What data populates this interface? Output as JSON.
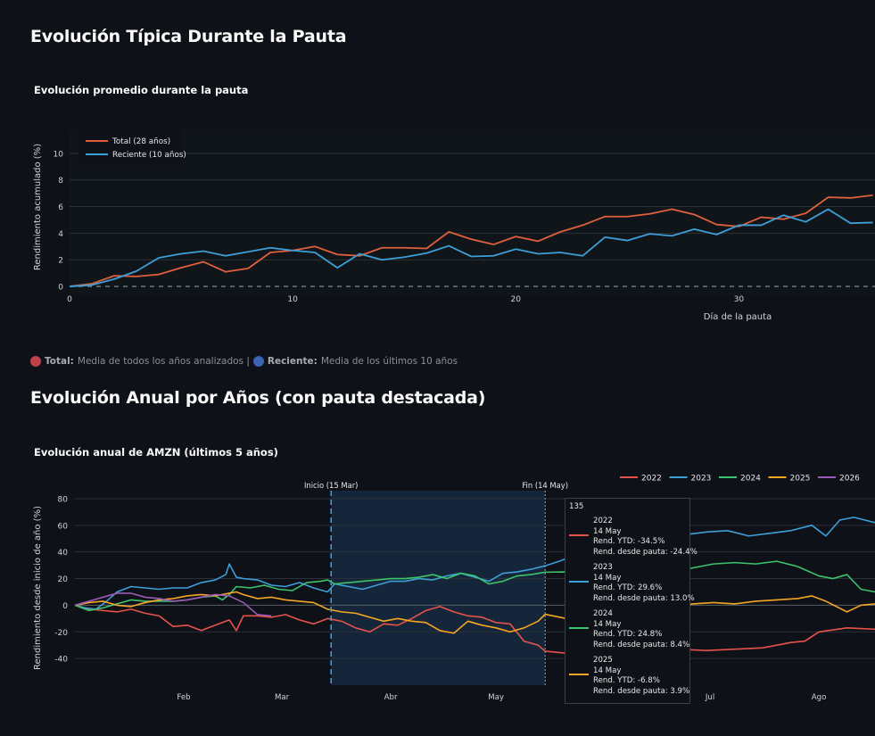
{
  "page": {
    "section1_title": "Evolución Típica Durante la Pauta",
    "section2_title": "Evolución Anual por Años (con pauta destacada)",
    "caption": {
      "total_label": "Total:",
      "total_text": "Media de todos los años analizados |",
      "recent_label": "Reciente:",
      "recent_text": "Media de los últimos 10 años",
      "total_dot_color": "#c0404a",
      "recent_dot_color": "#3d63b5"
    }
  },
  "chart_data": [
    {
      "type": "line",
      "title": "Evolución promedio durante la pauta",
      "xlabel": "Día de la pauta",
      "ylabel": "Rendimiento acumulado (%)",
      "xlim": [
        0,
        36.1
      ],
      "ylim": [
        -0.6,
        11.8
      ],
      "xticks": [
        0,
        10,
        20,
        30
      ],
      "yticks": [
        0,
        2,
        4,
        6,
        8,
        10
      ],
      "grid": true,
      "legend_position": "top-left",
      "zero_line": "dashed",
      "series": [
        {
          "name": "Total (28 años)",
          "color": "#e0603e",
          "x": [
            0,
            1,
            2,
            3,
            4,
            5,
            6,
            7,
            8,
            9,
            10,
            11,
            12,
            13,
            14,
            15,
            16,
            17,
            18,
            19,
            20,
            21,
            22,
            23,
            24,
            25,
            26,
            27,
            28,
            29,
            30,
            31,
            32,
            33,
            34,
            35,
            36
          ],
          "y": [
            0,
            0.2,
            0.8,
            0.75,
            0.9,
            1.4,
            1.85,
            1.1,
            1.35,
            2.55,
            2.7,
            3.0,
            2.4,
            2.3,
            2.9,
            2.9,
            2.85,
            4.1,
            3.55,
            3.15,
            3.75,
            3.4,
            4.1,
            4.6,
            5.25,
            5.25,
            5.45,
            5.8,
            5.4,
            4.65,
            4.5,
            5.2,
            5.05,
            5.5,
            6.7,
            6.65,
            6.85
          ]
        },
        {
          "name": "Reciente (10 años)",
          "color": "#3d9fd8",
          "x": [
            0,
            1,
            2,
            3,
            4,
            5,
            6,
            7,
            8,
            9,
            10,
            11,
            12,
            13,
            14,
            15,
            16,
            17,
            18,
            19,
            20,
            21,
            22,
            23,
            24,
            25,
            26,
            27,
            28,
            29,
            30,
            31,
            32,
            33,
            34,
            35,
            36
          ],
          "y": [
            0,
            0.1,
            0.55,
            1.15,
            2.15,
            2.45,
            2.65,
            2.3,
            2.6,
            2.9,
            2.7,
            2.55,
            1.4,
            2.45,
            2.0,
            2.2,
            2.5,
            3.05,
            2.25,
            2.3,
            2.8,
            2.45,
            2.55,
            2.3,
            3.7,
            3.45,
            3.95,
            3.8,
            4.3,
            3.9,
            4.6,
            4.6,
            5.35,
            4.85,
            5.8,
            4.75,
            4.8
          ]
        }
      ]
    },
    {
      "type": "line",
      "title": "Evolución anual de AMZN (últimos 5 años)",
      "xlabel": "",
      "ylabel": "Rendimiento desde inicio de año (%)",
      "x_unit": "day_of_year",
      "xlim": [
        0,
        228
      ],
      "ylim": [
        -60,
        86
      ],
      "xticks": [
        {
          "doy": 31,
          "label": "Feb"
        },
        {
          "doy": 59,
          "label": "Mar"
        },
        {
          "doy": 90,
          "label": "Abr"
        },
        {
          "doy": 120,
          "label": "May"
        },
        {
          "doy": 181,
          "label": "Jul"
        },
        {
          "doy": 212,
          "label": "Ago"
        }
      ],
      "yticks": [
        -40,
        -20,
        0,
        20,
        40,
        60,
        80
      ],
      "grid": true,
      "legend_position": "top-right",
      "highlight_period": {
        "start_doy": 73,
        "end_doy": 134,
        "start_label": "Inicio (15 Mar)",
        "end_label": "Fin (14 May)",
        "fill": "#16263a"
      },
      "hover": {
        "header": "135",
        "items": [
          {
            "year": "2022",
            "date": "14 May",
            "ytd": "Rend. YTD: -34.5%",
            "since": "Rend. desde pauta: -24.4%",
            "color": "#e5534b"
          },
          {
            "year": "2023",
            "date": "14 May",
            "ytd": "Rend. YTD: 29.6%",
            "since": "Rend. desde pauta: 13.0%",
            "color": "#3d9fd8"
          },
          {
            "year": "2024",
            "date": "14 May",
            "ytd": "Rend. YTD: 24.8%",
            "since": "Rend. desde pauta: 8.4%",
            "color": "#3cc46b"
          },
          {
            "year": "2025",
            "date": "14 May",
            "ytd": "Rend. YTD: -6.8%",
            "since": "Rend. desde pauta: 3.9%",
            "color": "#f5a623"
          }
        ]
      },
      "series": [
        {
          "name": "2022",
          "color": "#e5534b",
          "x": [
            0,
            4,
            8,
            12,
            16,
            20,
            24,
            28,
            32,
            36,
            40,
            44,
            46,
            48,
            52,
            56,
            60,
            64,
            68,
            72,
            76,
            80,
            84,
            88,
            92,
            96,
            100,
            104,
            108,
            112,
            116,
            120,
            124,
            128,
            132,
            134,
            140,
            148,
            156,
            164,
            172,
            180,
            188,
            196,
            204,
            208,
            212,
            220,
            228
          ],
          "y": [
            0,
            -3,
            -4,
            -5,
            -3,
            -6,
            -8,
            -16,
            -15,
            -19,
            -15,
            -11,
            -19,
            -8,
            -8,
            -9,
            -7,
            -11,
            -14,
            -10,
            -12,
            -17,
            -20,
            -14,
            -15,
            -10,
            -4,
            -1,
            -5,
            -8,
            -9,
            -13,
            -14,
            -27,
            -30,
            -34.5,
            -36,
            -35,
            -34,
            -37,
            -33,
            -34,
            -33,
            -32,
            -28,
            -27,
            -20,
            -17,
            -18
          ]
        },
        {
          "name": "2023",
          "color": "#3d9fd8",
          "x": [
            0,
            3,
            6,
            9,
            12,
            16,
            20,
            24,
            28,
            32,
            36,
            40,
            43,
            44,
            46,
            48,
            52,
            56,
            60,
            64,
            68,
            72,
            74,
            78,
            82,
            86,
            90,
            94,
            98,
            102,
            106,
            110,
            114,
            118,
            122,
            126,
            130,
            134,
            138,
            142,
            146,
            150,
            156,
            162,
            168,
            174,
            180,
            186,
            192,
            198,
            204,
            210,
            214,
            218,
            222,
            228
          ],
          "y": [
            0,
            -2,
            -3,
            3,
            10,
            14,
            13,
            12,
            13,
            13,
            17,
            19,
            23,
            31,
            21,
            20,
            19,
            15,
            14,
            17,
            13,
            10,
            16,
            14,
            12,
            15,
            18,
            18,
            20,
            19,
            22,
            24,
            21,
            18,
            24,
            25,
            27,
            29.6,
            33,
            37,
            44,
            47,
            46,
            48,
            51,
            53,
            55,
            56,
            52,
            54,
            56,
            60,
            52,
            64,
            66,
            62
          ]
        },
        {
          "name": "2024",
          "color": "#3cc46b",
          "x": [
            0,
            4,
            8,
            12,
            16,
            20,
            24,
            28,
            32,
            36,
            40,
            42,
            44,
            46,
            50,
            54,
            58,
            62,
            66,
            70,
            72,
            74,
            78,
            82,
            86,
            90,
            94,
            98,
            102,
            106,
            110,
            114,
            118,
            122,
            126,
            130,
            134,
            140,
            146,
            152,
            158,
            164,
            170,
            176,
            182,
            188,
            194,
            200,
            206,
            212,
            216,
            220,
            224,
            228
          ],
          "y": [
            0,
            -4,
            -2,
            1,
            4,
            3,
            3,
            3,
            4,
            6,
            7,
            4,
            8,
            14,
            13,
            15,
            12,
            11,
            17,
            18,
            19,
            16,
            17,
            18,
            19,
            20,
            20,
            21,
            23,
            20,
            24,
            22,
            16,
            18,
            22,
            23,
            24.8,
            25,
            21,
            24,
            27,
            26,
            25,
            28,
            31,
            32,
            31,
            33,
            29,
            22,
            20,
            23,
            12,
            10
          ]
        },
        {
          "name": "2025",
          "color": "#f5a623",
          "x": [
            0,
            4,
            8,
            12,
            16,
            20,
            24,
            28,
            32,
            36,
            40,
            44,
            46,
            48,
            52,
            56,
            60,
            64,
            68,
            72,
            76,
            80,
            84,
            88,
            92,
            96,
            100,
            104,
            108,
            112,
            116,
            120,
            124,
            128,
            132,
            134,
            140,
            146,
            152,
            158,
            164,
            170,
            176,
            182,
            188,
            194,
            200,
            206,
            210,
            214,
            220,
            224,
            228
          ],
          "y": [
            0,
            2,
            3,
            0,
            -1,
            2,
            4,
            5,
            7,
            8,
            7,
            9,
            10,
            8,
            5,
            6,
            4,
            3,
            2,
            -3,
            -5,
            -6,
            -9,
            -12,
            -10,
            -12,
            -13,
            -19,
            -21,
            -12,
            -15,
            -17,
            -20,
            -17,
            -12,
            -6.8,
            -10,
            -9,
            -8,
            -3,
            -1,
            -1,
            1,
            2,
            1,
            3,
            4,
            5,
            7,
            3,
            -5,
            0,
            1
          ]
        },
        {
          "name": "2026",
          "color": "#9b59b6",
          "x": [
            0,
            4,
            8,
            12,
            16,
            20,
            24,
            28,
            32,
            36,
            40,
            44,
            48,
            52,
            56
          ],
          "y": [
            0,
            3,
            6,
            9,
            9,
            6,
            5,
            3,
            4,
            6,
            8,
            7,
            2,
            -7,
            -8
          ]
        }
      ]
    }
  ]
}
